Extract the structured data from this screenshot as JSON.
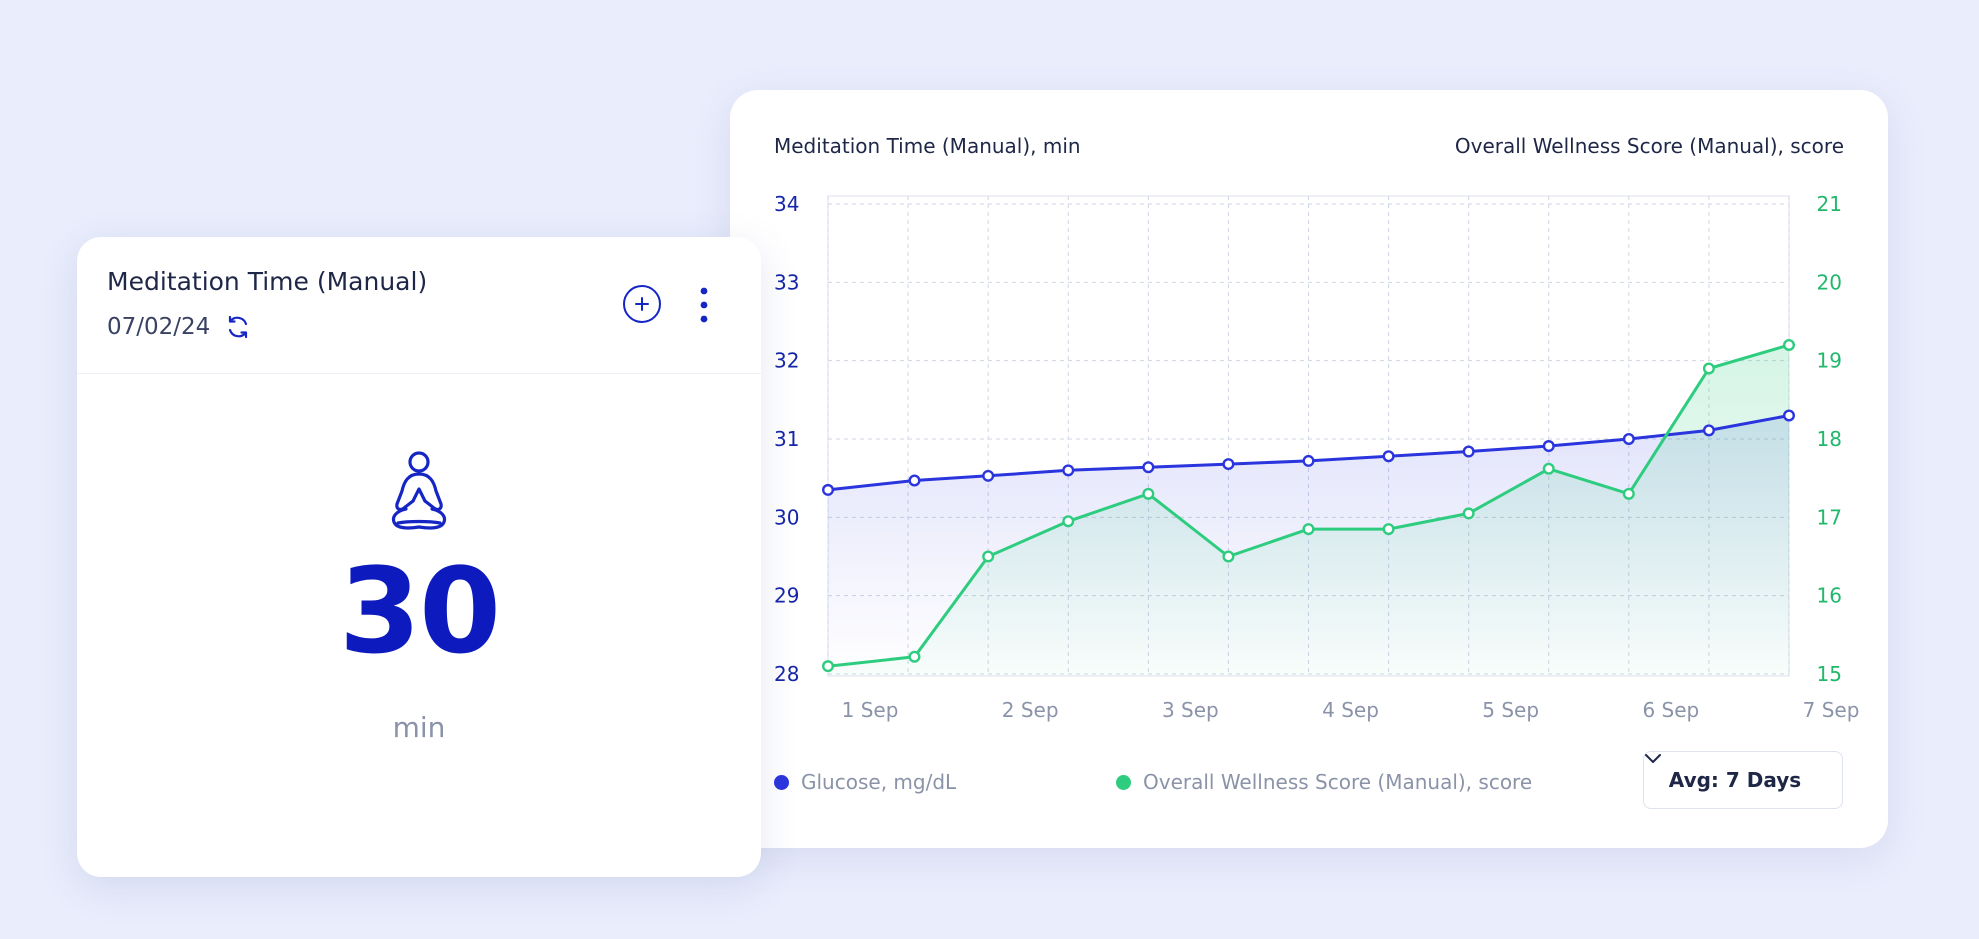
{
  "colors": {
    "glucose": "#2a35dd",
    "wellness": "#2ecc7f",
    "left_axis_text": "#1626a8",
    "right_axis_text": "#21b86b",
    "grid": "#cfd6e4"
  },
  "chart_card": {
    "left_axis_title": "Meditation Time (Manual), min",
    "right_axis_title": "Overall Wellness Score (Manual), score",
    "avg_select": {
      "value": "Avg: 7 Days",
      "icon": "chevron-down-icon"
    }
  },
  "chart_data": {
    "type": "line",
    "xlabel": "",
    "x_ticks": [
      "1 Sep",
      "2 Sep",
      "3 Sep",
      "4 Sep",
      "5 Sep",
      "6 Sep",
      "7 Sep"
    ],
    "y_left": {
      "label": "Meditation Time (Manual), min",
      "ylim": [
        28,
        34
      ],
      "ticks": [
        28,
        29,
        30,
        31,
        32,
        33,
        34
      ]
    },
    "y_right": {
      "label": "Overall Wellness Score (Manual), score",
      "ylim": [
        15,
        21
      ],
      "ticks": [
        15,
        16,
        17,
        18,
        19,
        20,
        21
      ]
    },
    "grid": true,
    "legend_position": "bottom-left",
    "series": [
      {
        "name": "Glucose, mg/dL",
        "axis": "left",
        "x": [
          0,
          0.54,
          1.0,
          1.5,
          2.0,
          2.5,
          3.0,
          3.5,
          4.0,
          4.5,
          5.0,
          5.5,
          6.0
        ],
        "values": [
          30.35,
          30.47,
          30.53,
          30.6,
          30.64,
          30.68,
          30.72,
          30.78,
          30.84,
          30.91,
          31.0,
          31.11,
          31.3
        ]
      },
      {
        "name": "Overall Wellness Score (Manual), score",
        "axis": "right",
        "x": [
          0,
          0.54,
          1.0,
          1.5,
          2.0,
          2.5,
          3.0,
          3.5,
          4.0,
          4.5,
          5.0,
          5.5,
          6.0
        ],
        "values": [
          15.1,
          15.22,
          16.5,
          16.95,
          17.3,
          16.5,
          16.85,
          16.85,
          17.05,
          17.62,
          17.3,
          18.9,
          19.2
        ]
      }
    ]
  },
  "metric_card": {
    "title": "Meditation Time (Manual)",
    "date": "07/02/24",
    "value": "30",
    "unit": "min",
    "icons": [
      "refresh-icon",
      "plus-icon",
      "more-vertical-icon",
      "meditation-icon"
    ]
  }
}
